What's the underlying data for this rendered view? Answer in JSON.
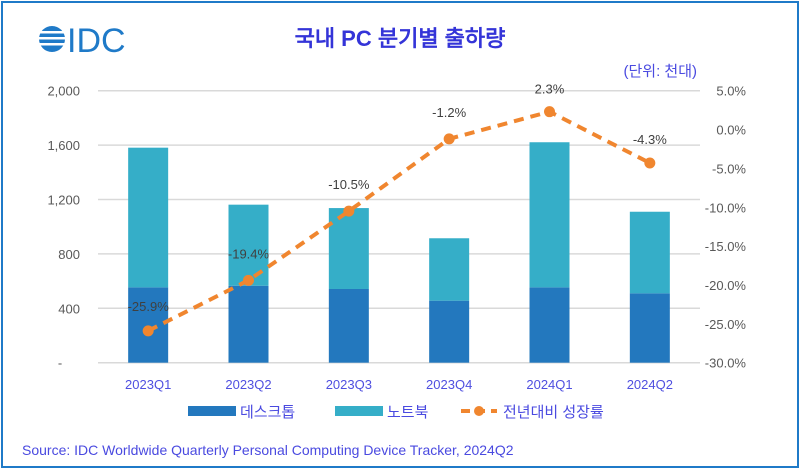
{
  "logo_text": "IDC",
  "chart_data": {
    "type": "bar",
    "title": "국내 PC 분기별 출하량",
    "unit_label": "(단위: 천대)",
    "categories": [
      "2023Q1",
      "2023Q2",
      "2023Q3",
      "2023Q4",
      "2024Q1",
      "2024Q2"
    ],
    "series": [
      {
        "name": "데스크톱",
        "type": "bar",
        "stack": "total",
        "color": "#2378be",
        "values": [
          554,
          566,
          542,
          456,
          554,
          510
        ]
      },
      {
        "name": "노트북",
        "type": "bar",
        "stack": "total",
        "color": "#35aec8",
        "values": [
          1027,
          596,
          595,
          459,
          1067,
          600
        ]
      },
      {
        "name": "전년대비 성장률",
        "type": "line",
        "axis": "right",
        "color": "#f0862f",
        "dashed": true,
        "values": [
          -25.9,
          -19.4,
          -10.5,
          -1.2,
          2.3,
          -4.3
        ],
        "data_labels": [
          "-25.9%",
          "-19.4%",
          "-10.5%",
          "-1.2%",
          "2.3%",
          "-4.3%"
        ]
      }
    ],
    "left_axis": {
      "ylim": [
        0,
        2000
      ],
      "ticks": [
        "-",
        "400",
        "800",
        "1,200",
        "1,600",
        "2,000"
      ]
    },
    "right_axis": {
      "ylim": [
        -30,
        5
      ],
      "ticks": [
        "-30.0%",
        "-25.0%",
        "-20.0%",
        "-15.0%",
        "-10.0%",
        "-5.0%",
        "0.0%",
        "5.0%"
      ]
    },
    "grid": true,
    "legend_position": "bottom"
  },
  "source": "Source: IDC Worldwide Quarterly Personal Computing Device Tracker, 2024Q2"
}
